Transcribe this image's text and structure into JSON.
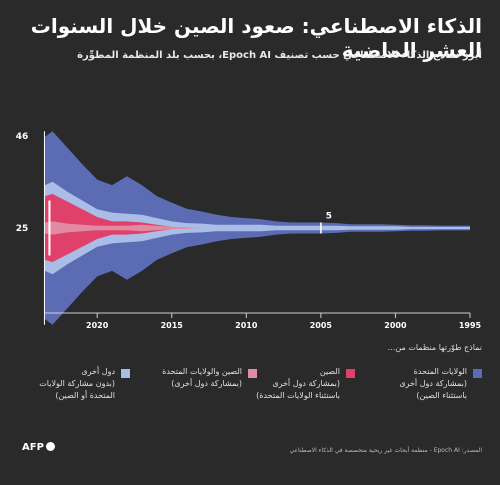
{
  "header": {
    "title": "الذكاء الاصطناعي: صعود الصين خلال السنوات العشر الماضية",
    "subtitle": "أبرز نماذج الذكاء الاصطناعي حسب تصنيف Epoch AI، بحسب بلد المنظمة المطوِّرة"
  },
  "colors": {
    "us": "#5b6cb5",
    "china": "#e0416b",
    "us_china": "#e38aa3",
    "other": "#a9bde6",
    "background": "#2a2a2a"
  },
  "chart_data": {
    "type": "area",
    "orientation": "streamgraph",
    "x_ticks": [
      1995,
      2000,
      2005,
      2010,
      2015,
      2020
    ],
    "xlim": [
      2023.5,
      1995
    ],
    "annotations": [
      {
        "year": 2023,
        "label": "46"
      },
      {
        "year": 2023,
        "label": "25"
      },
      {
        "year": 2005,
        "label": "5"
      }
    ],
    "series": [
      {
        "name": "الولايات المتحدة",
        "key": "us",
        "x": [
          2023.5,
          2023,
          2022,
          2021,
          2020,
          2019,
          2018,
          2017,
          2016,
          2015,
          2014,
          2013,
          2012,
          2011,
          2010,
          2009,
          2008,
          2007,
          2006,
          2005,
          2004,
          2003,
          2002,
          2001,
          2000,
          1999,
          1998,
          1997,
          1996,
          1995
        ],
        "values": [
          44,
          46,
          40,
          33,
          27,
          25,
          34,
          27,
          20,
          17,
          13,
          11,
          9,
          7,
          6,
          5,
          4,
          3,
          3,
          3,
          2.5,
          2,
          2,
          2,
          1.5,
          1.5,
          1.5,
          1.2,
          1.2,
          1.2
        ]
      },
      {
        "name": "الصين",
        "key": "china",
        "x": [
          2023.5,
          2023,
          2022,
          2021,
          2020,
          2019,
          2018,
          2017,
          2016,
          2015
        ],
        "values": [
          24,
          25,
          20,
          14,
          8,
          4,
          4,
          2,
          1,
          0
        ]
      },
      {
        "name": "الصين والولايات المتحدة",
        "key": "us_china",
        "x": [
          2023.5,
          2023,
          2022,
          2021,
          2020,
          2019,
          2018,
          2017,
          2016,
          2015,
          2014,
          2013
        ],
        "values": [
          5,
          6,
          4,
          3,
          2,
          2,
          2,
          3,
          2,
          1,
          0.5,
          0
        ]
      },
      {
        "name": "دول أخرى",
        "key": "other",
        "x": [
          2023.5,
          2023,
          2022,
          2021,
          2020,
          2019,
          2018,
          2017,
          2016,
          2015,
          2014,
          2013,
          2012,
          2011,
          2010,
          2009,
          2008,
          2007,
          2006,
          2005,
          2004,
          2003,
          2002,
          2001,
          2000,
          1999,
          1998,
          1997,
          1996,
          1995
        ],
        "values": [
          10,
          11,
          9,
          8,
          7,
          8,
          7,
          7,
          6,
          5,
          4,
          4,
          3,
          3,
          3,
          3,
          2,
          2,
          2,
          2,
          2,
          1.5,
          1.5,
          1.5,
          1.5,
          1,
          1,
          1,
          1,
          1
        ]
      }
    ]
  },
  "legend": {
    "heading": "نماذج طوّرتها منظمات من...",
    "items": [
      {
        "key": "us",
        "line1": "الولايات المتحدة",
        "line2": "(بمشاركة دول أخرى",
        "line3": "باستثناء الصين)"
      },
      {
        "key": "china",
        "line1": "الصين",
        "line2": "(بمشاركة دول أخرى",
        "line3": "باستثناء الولايات المتحدة)"
      },
      {
        "key": "us_china",
        "line1": "الصين والولايات المتحدة",
        "line2": "(بمشاركة دول أخرى)",
        "line3": ""
      },
      {
        "key": "other",
        "line1": "دول أخرى",
        "line2": "(بدون مشاركة الولايات",
        "line3": "المتحدة أو الصين)"
      }
    ]
  },
  "footer": {
    "source": "المصدر: Epoch AI - منظمة أبحاث غير ربحية متخصصة في الذكاء الاصطناعي",
    "logo": "AFP"
  }
}
